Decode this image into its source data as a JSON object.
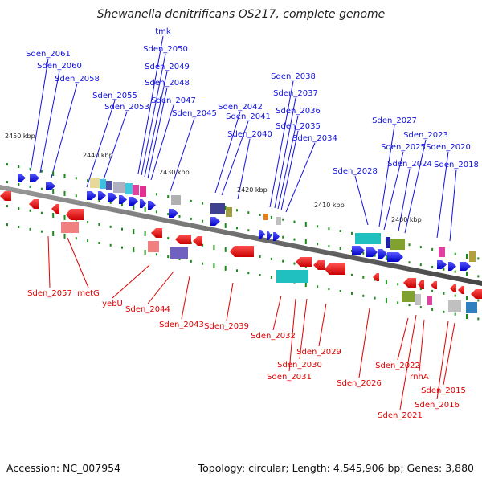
{
  "title": "Shewanella denitrificans OS217, complete genome",
  "accession_text": "Accession: NC_007954",
  "summary_text": "Topology: circular; Length: 4,545,906 bp; Genes: 3,880",
  "colors": {
    "top_strand": "#1010e0",
    "bottom_strand": "#e00000",
    "backbone": "#666666",
    "tick": "#1a8a1a"
  },
  "kbp_labels": [
    "2450 kbp",
    "2440 kbp",
    "2430 kbp",
    "2420 kbp",
    "2410 kbp",
    "2400 kbp"
  ],
  "top_genes": [
    "Sden_2061",
    "Sden_2060",
    "Sden_2058",
    "Sden_2055",
    "Sden_2053",
    "tmk",
    "Sden_2050",
    "Sden_2049",
    "Sden_2048",
    "Sden_2047",
    "Sden_2045",
    "Sden_2042",
    "Sden_2041",
    "Sden_2040",
    "Sden_2038",
    "Sden_2037",
    "Sden_2036",
    "Sden_2035",
    "Sden_2034",
    "Sden_2028",
    "Sden_2027",
    "Sden_2025",
    "Sden_2024",
    "Sden_2023",
    "Sden_2020",
    "Sden_2018"
  ],
  "bottom_genes": [
    "Sden_2057",
    "metG",
    "yebU",
    "Sden_2044",
    "Sden_2043",
    "Sden_2039",
    "Sden_2032",
    "Sden_2031",
    "Sden_2030",
    "Sden_2029",
    "Sden_2026",
    "Sden_2022",
    "rnhA",
    "Sden_2021",
    "Sden_2016",
    "Sden_2015"
  ]
}
